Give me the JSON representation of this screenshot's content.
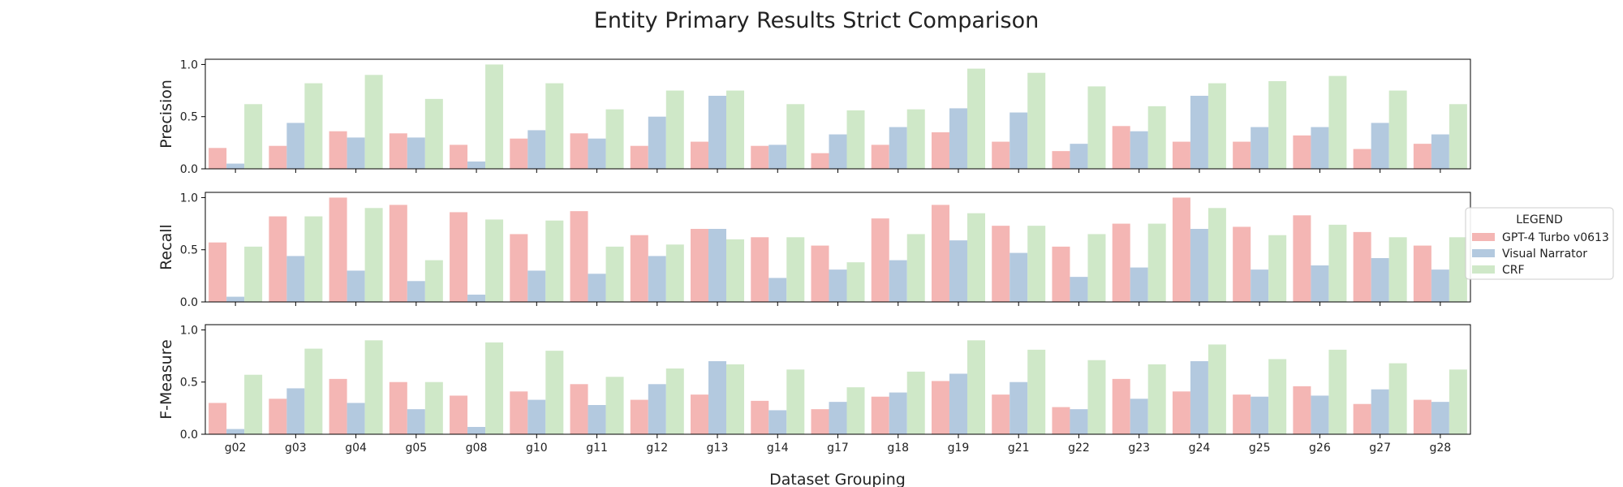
{
  "chart_data": {
    "type": "bar",
    "title": "Entity Primary Results Strict Comparison",
    "xlabel": "Dataset Grouping",
    "categories": [
      "g02",
      "g03",
      "g04",
      "g05",
      "g08",
      "g10",
      "g11",
      "g12",
      "g13",
      "g14",
      "g17",
      "g18",
      "g19",
      "g21",
      "g22",
      "g23",
      "g24",
      "g25",
      "g26",
      "g27",
      "g28"
    ],
    "series_meta": [
      {
        "name": "GPT-4 Turbo v0613",
        "color": "#f4b6b4"
      },
      {
        "name": "Visual Narrator",
        "color": "#b3c9df"
      },
      {
        "name": "CRF",
        "color": "#cfe8c8"
      }
    ],
    "legend": {
      "title": "LEGEND",
      "placement": "right"
    },
    "ylim": [
      0,
      1.05
    ],
    "yticks": [
      "0.0",
      "0.5",
      "1.0"
    ],
    "panels": [
      {
        "ylabel": "Precision",
        "series": [
          {
            "name": "GPT-4 Turbo v0613",
            "values": [
              0.2,
              0.22,
              0.36,
              0.34,
              0.23,
              0.29,
              0.34,
              0.22,
              0.26,
              0.22,
              0.15,
              0.23,
              0.35,
              0.26,
              0.17,
              0.41,
              0.26,
              0.26,
              0.32,
              0.19,
              0.24
            ]
          },
          {
            "name": "Visual Narrator",
            "values": [
              0.05,
              0.44,
              0.3,
              0.3,
              0.07,
              0.37,
              0.29,
              0.5,
              0.7,
              0.23,
              0.33,
              0.4,
              0.58,
              0.54,
              0.24,
              0.36,
              0.7,
              0.4,
              0.4,
              0.44,
              0.33
            ]
          },
          {
            "name": "CRF",
            "values": [
              0.62,
              0.82,
              0.9,
              0.67,
              1.0,
              0.82,
              0.57,
              0.75,
              0.75,
              0.62,
              0.56,
              0.57,
              0.96,
              0.92,
              0.79,
              0.6,
              0.82,
              0.84,
              0.89,
              0.75,
              0.62
            ]
          }
        ]
      },
      {
        "ylabel": "Recall",
        "series": [
          {
            "name": "GPT-4 Turbo v0613",
            "values": [
              0.57,
              0.82,
              1.0,
              0.93,
              0.86,
              0.65,
              0.87,
              0.64,
              0.7,
              0.62,
              0.54,
              0.8,
              0.93,
              0.73,
              0.53,
              0.75,
              1.0,
              0.72,
              0.83,
              0.67,
              0.54
            ]
          },
          {
            "name": "Visual Narrator",
            "values": [
              0.05,
              0.44,
              0.3,
              0.2,
              0.07,
              0.3,
              0.27,
              0.44,
              0.7,
              0.23,
              0.31,
              0.4,
              0.59,
              0.47,
              0.24,
              0.33,
              0.7,
              0.31,
              0.35,
              0.42,
              0.31
            ]
          },
          {
            "name": "CRF",
            "values": [
              0.53,
              0.82,
              0.9,
              0.4,
              0.79,
              0.78,
              0.53,
              0.55,
              0.6,
              0.62,
              0.38,
              0.65,
              0.85,
              0.73,
              0.65,
              0.75,
              0.9,
              0.64,
              0.74,
              0.62,
              0.62
            ]
          }
        ]
      },
      {
        "ylabel": "F-Measure",
        "series": [
          {
            "name": "GPT-4 Turbo v0613",
            "values": [
              0.3,
              0.34,
              0.53,
              0.5,
              0.37,
              0.41,
              0.48,
              0.33,
              0.38,
              0.32,
              0.24,
              0.36,
              0.51,
              0.38,
              0.26,
              0.53,
              0.41,
              0.38,
              0.46,
              0.29,
              0.33
            ]
          },
          {
            "name": "Visual Narrator",
            "values": [
              0.05,
              0.44,
              0.3,
              0.24,
              0.07,
              0.33,
              0.28,
              0.48,
              0.7,
              0.23,
              0.31,
              0.4,
              0.58,
              0.5,
              0.24,
              0.34,
              0.7,
              0.36,
              0.37,
              0.43,
              0.31
            ]
          },
          {
            "name": "CRF",
            "values": [
              0.57,
              0.82,
              0.9,
              0.5,
              0.88,
              0.8,
              0.55,
              0.63,
              0.67,
              0.62,
              0.45,
              0.6,
              0.9,
              0.81,
              0.71,
              0.67,
              0.86,
              0.72,
              0.81,
              0.68,
              0.62
            ]
          }
        ]
      }
    ]
  }
}
